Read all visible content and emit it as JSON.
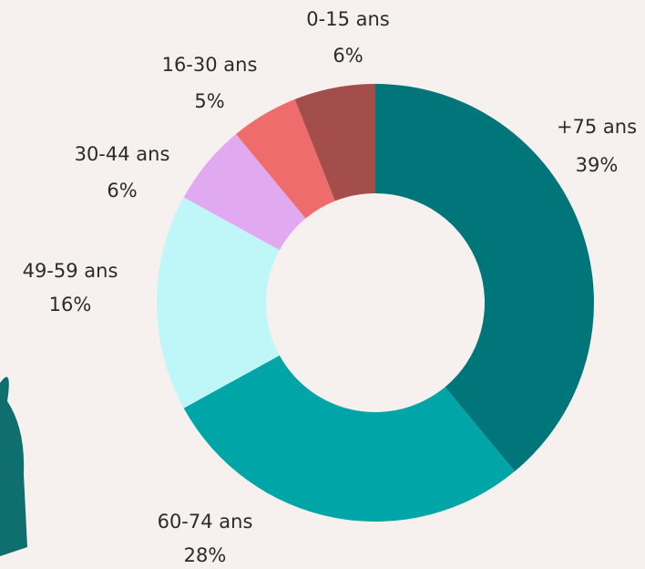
{
  "chart_data": {
    "type": "donut",
    "categories": [
      "+75 ans",
      "60-74 ans",
      "49-59 ans",
      "30-44 ans",
      "16-30 ans",
      "0-15 ans"
    ],
    "values": [
      39,
      28,
      16,
      6,
      5,
      6
    ],
    "value_labels": [
      "39%",
      "28%",
      "16%",
      "6%",
      "5%",
      "6%"
    ],
    "colors": [
      "#00767a",
      "#00a5a8",
      "#bff7f8",
      "#e0a9f0",
      "#ee6c6b",
      "#a34e4b"
    ]
  }
}
